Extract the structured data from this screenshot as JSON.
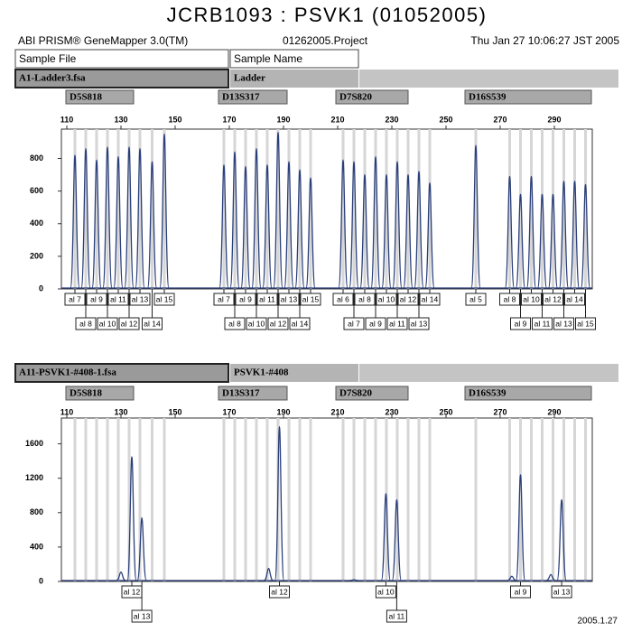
{
  "header": {
    "title": "JCRB1093 : PSVK1 (01052005)",
    "software": "ABI PRISM® GeneMapper 3.0(TM)",
    "project": "01262005.Project",
    "date": "Thu Jan 27 10:06:27 JST 2005",
    "sample_file_header": "Sample File",
    "sample_name_header": "Sample Name",
    "footer": "2005.1.27"
  },
  "chart_data": [
    {
      "type": "line",
      "sample_file": "A1-Ladder3.fsa",
      "sample_name": "Ladder",
      "color": "#2a3f7a",
      "xlim": [
        108,
        304
      ],
      "xticks": [
        110,
        130,
        150,
        170,
        190,
        210,
        230,
        250,
        270,
        290
      ],
      "ylim": [
        0,
        980
      ],
      "yticks": [
        0,
        200,
        400,
        600,
        800
      ],
      "markers": [
        {
          "name": "D5S818",
          "alleles": [
            {
              "label": "al 7",
              "x": 113
            },
            {
              "label": "al 8",
              "x": 117
            },
            {
              "label": "al 9",
              "x": 121
            },
            {
              "label": "al 10",
              "x": 125
            },
            {
              "label": "al 11",
              "x": 129
            },
            {
              "label": "al 12",
              "x": 133
            },
            {
              "label": "al 13",
              "x": 137
            },
            {
              "label": "al 14",
              "x": 141.5
            },
            {
              "label": "al 15",
              "x": 146
            }
          ]
        },
        {
          "name": "D13S317",
          "alleles": [
            {
              "label": "al 7",
              "x": 168
            },
            {
              "label": "al 8",
              "x": 172
            },
            {
              "label": "al 9",
              "x": 176
            },
            {
              "label": "al 10",
              "x": 180
            },
            {
              "label": "al 11",
              "x": 184
            },
            {
              "label": "al 12",
              "x": 188
            },
            {
              "label": "al 13",
              "x": 192
            },
            {
              "label": "al 14",
              "x": 196
            },
            {
              "label": "al 15",
              "x": 200
            }
          ]
        },
        {
          "name": "D7S820",
          "alleles": [
            {
              "label": "al 6",
              "x": 212
            },
            {
              "label": "al 7",
              "x": 216
            },
            {
              "label": "al 8",
              "x": 220
            },
            {
              "label": "al 9",
              "x": 224
            },
            {
              "label": "al 10",
              "x": 228
            },
            {
              "label": "al 11",
              "x": 232
            },
            {
              "label": "al 12",
              "x": 236
            },
            {
              "label": "al 13",
              "x": 240
            },
            {
              "label": "al 14",
              "x": 244
            }
          ]
        },
        {
          "name": "D16S539",
          "alleles": [
            {
              "label": "al 5",
              "x": 261
            },
            {
              "label": "al 8",
              "x": 273.5
            },
            {
              "label": "al 9",
              "x": 277.5
            },
            {
              "label": "al 10",
              "x": 281.5
            },
            {
              "label": "al 11",
              "x": 285.5
            },
            {
              "label": "al 12",
              "x": 289.5
            },
            {
              "label": "al 13",
              "x": 293.5
            },
            {
              "label": "al 14",
              "x": 297.5
            },
            {
              "label": "al 15",
              "x": 301.5
            }
          ]
        }
      ],
      "peaks": {
        "x": [
          113,
          117,
          121,
          125,
          129,
          133,
          137,
          141.5,
          146,
          168,
          172,
          176,
          180,
          184,
          188,
          192,
          196,
          200,
          212,
          216,
          220,
          224,
          228,
          232,
          236,
          240,
          244,
          261,
          273.5,
          277.5,
          281.5,
          285.5,
          289.5,
          293.5,
          297.5,
          301.5
        ],
        "values": [
          820,
          860,
          790,
          870,
          810,
          870,
          860,
          780,
          950,
          760,
          840,
          750,
          860,
          760,
          960,
          780,
          730,
          680,
          790,
          780,
          700,
          810,
          700,
          780,
          700,
          720,
          650,
          880,
          690,
          580,
          690,
          580,
          580,
          660,
          660,
          640
        ]
      }
    },
    {
      "type": "line",
      "sample_file": "A11-PSVK1-#408-1.fsa",
      "sample_name": "PSVK1-#408",
      "color": "#2a3f7a",
      "xlim": [
        108,
        304
      ],
      "xticks": [
        110,
        130,
        150,
        170,
        190,
        210,
        230,
        250,
        270,
        290
      ],
      "ylim": [
        0,
        1900
      ],
      "yticks": [
        0,
        400,
        800,
        1200,
        1600
      ],
      "markers": [
        {
          "name": "D5S818",
          "alleles": [
            {
              "label": "al 12",
              "x": 134
            },
            {
              "label": "al 13",
              "x": 137.7
            }
          ]
        },
        {
          "name": "D13S317",
          "alleles": [
            {
              "label": "al 12",
              "x": 188.5
            }
          ]
        },
        {
          "name": "D7S820",
          "alleles": [
            {
              "label": "al 10",
              "x": 227.8
            },
            {
              "label": "al 11",
              "x": 231.8
            }
          ]
        },
        {
          "name": "D16S539",
          "alleles": [
            {
              "label": "al 9",
              "x": 277.5
            },
            {
              "label": "al 13",
              "x": 292.7
            }
          ]
        }
      ],
      "peaks": {
        "x": [
          130,
          134,
          137.7,
          184.5,
          188.5,
          216,
          227.8,
          231.8,
          274.3,
          277.5,
          288.7,
          292.7
        ],
        "values": [
          110,
          1450,
          740,
          150,
          1800,
          20,
          1020,
          950,
          60,
          1240,
          80,
          950
        ]
      }
    }
  ]
}
